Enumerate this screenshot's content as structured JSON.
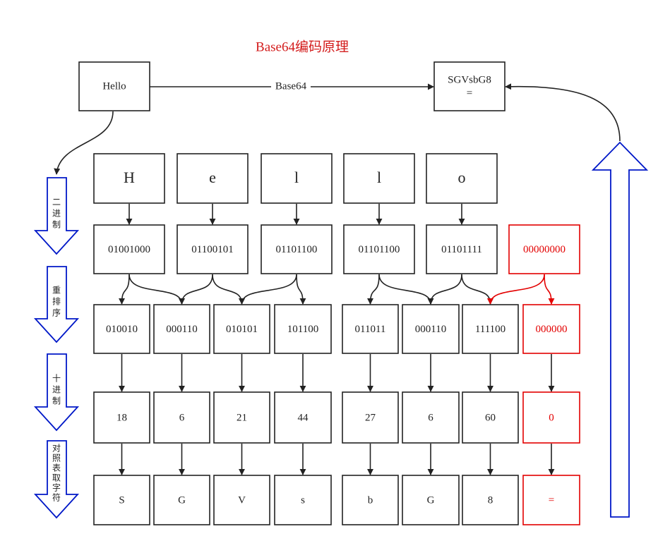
{
  "title": "Base64编码原理",
  "input": "Hello",
  "output": [
    "SGVsbG8",
    "="
  ],
  "edge_label": "Base64",
  "steps": [
    [
      "二",
      "进",
      "制"
    ],
    [
      "重",
      "排",
      "序"
    ],
    [
      "十",
      "进",
      "制"
    ],
    [
      "对",
      "照",
      "表",
      "取",
      "字",
      "符"
    ]
  ],
  "chars": [
    "H",
    "e",
    "l",
    "l",
    "o"
  ],
  "bytes": [
    {
      "value": "01001000",
      "pad": false
    },
    {
      "value": "01100101",
      "pad": false
    },
    {
      "value": "01101100",
      "pad": false
    },
    {
      "value": "01101100",
      "pad": false
    },
    {
      "value": "01101111",
      "pad": false
    },
    {
      "value": "00000000",
      "pad": true
    }
  ],
  "sextets": [
    {
      "value": "010010",
      "pad": false
    },
    {
      "value": "000110",
      "pad": false
    },
    {
      "value": "010101",
      "pad": false
    },
    {
      "value": "101100",
      "pad": false
    },
    {
      "value": "011011",
      "pad": false
    },
    {
      "value": "000110",
      "pad": false
    },
    {
      "value": "111100",
      "pad": false
    },
    {
      "value": "000000",
      "pad": true
    }
  ],
  "decimals": [
    {
      "value": "18",
      "pad": false
    },
    {
      "value": "6",
      "pad": false
    },
    {
      "value": "21",
      "pad": false
    },
    {
      "value": "44",
      "pad": false
    },
    {
      "value": "27",
      "pad": false
    },
    {
      "value": "6",
      "pad": false
    },
    {
      "value": "60",
      "pad": false
    },
    {
      "value": "0",
      "pad": true
    }
  ],
  "result_chars": [
    {
      "value": "S",
      "pad": false
    },
    {
      "value": "G",
      "pad": false
    },
    {
      "value": "V",
      "pad": false
    },
    {
      "value": "s",
      "pad": false
    },
    {
      "value": "b",
      "pad": false
    },
    {
      "value": "G",
      "pad": false
    },
    {
      "value": "8",
      "pad": false
    },
    {
      "value": "=",
      "pad": true
    }
  ],
  "colors": {
    "pad": "#e30000",
    "step_arrow": "#0018c8",
    "title": "#d31c1c"
  }
}
